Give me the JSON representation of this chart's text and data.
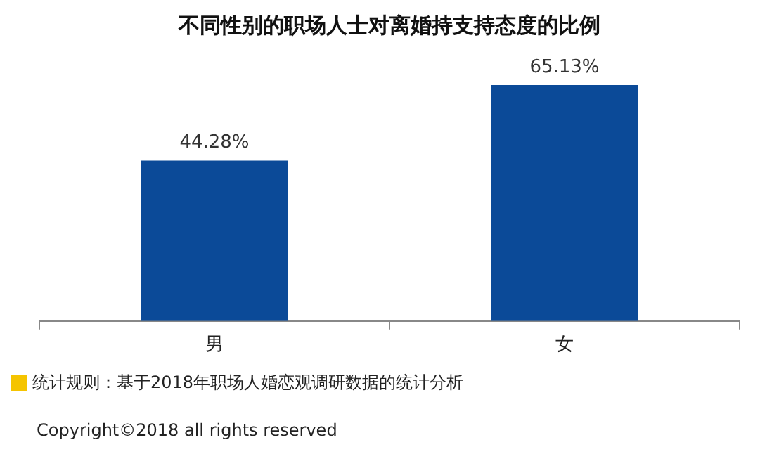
{
  "chart_data": {
    "type": "bar",
    "title": "不同性别的职场人士对离婚持支持态度的比例",
    "categories": [
      "男",
      "女"
    ],
    "series": [
      {
        "color": "#0b4a98",
        "values": [
          44.28,
          65.13
        ],
        "value_labels": [
          "44.28%",
          "65.13%"
        ]
      }
    ],
    "legend": false,
    "annotations": [
      "统计规则：基于2018年职场人婚恋观调研数据的统计分析",
      "Copyright©2018 all rights reserved"
    ]
  }
}
